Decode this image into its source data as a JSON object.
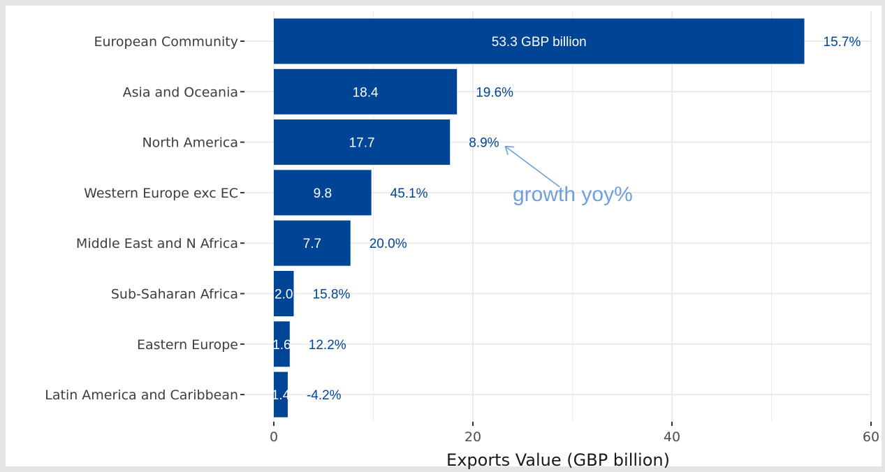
{
  "chart_data": {
    "type": "bar",
    "orientation": "horizontal",
    "categories": [
      "European Community",
      "Asia and Oceania",
      "North America",
      "Western Europe exc EC",
      "Middle East and N Africa",
      "Sub-Saharan Africa",
      "Eastern Europe",
      "Latin America and Caribbean"
    ],
    "values": [
      53.3,
      18.4,
      17.7,
      9.8,
      7.7,
      2.0,
      1.6,
      1.4
    ],
    "value_labels": [
      "53.3 GBP billion",
      "18.4",
      "17.7",
      "9.8",
      "7.7",
      "2.0",
      "1.6",
      "1.4"
    ],
    "growth_labels": [
      "15.7%",
      "19.6%",
      "8.9%",
      "45.1%",
      "20.0%",
      "15.8%",
      "12.2%",
      "-4.2%"
    ],
    "xlabel": "Exports Value (GBP billion)",
    "ylabel": "",
    "xlim": [
      0,
      60
    ],
    "x_ticks": [
      0,
      20,
      40,
      60
    ],
    "x_tick_labels": [
      "0",
      "20",
      "40",
      "60"
    ],
    "grid": true,
    "colors": {
      "bar": "#004595",
      "growth_text": "#004595",
      "annotation": "#6fa0dc",
      "panel": "#ffffff",
      "grid": "#ebebeb",
      "background": "#e5e5e5"
    },
    "annotation": {
      "text": "growth yoy%",
      "points_to": "North America"
    }
  }
}
